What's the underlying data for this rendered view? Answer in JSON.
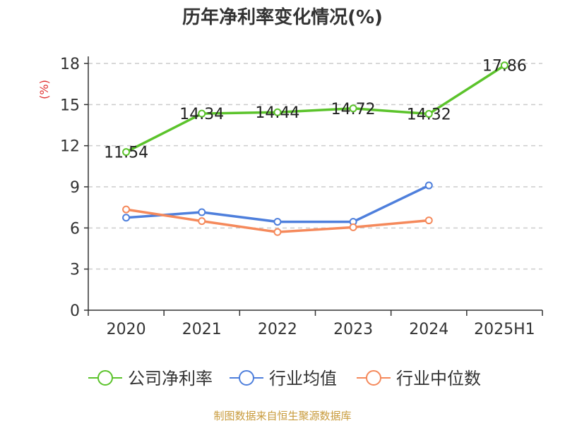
{
  "chart_data": {
    "type": "line",
    "title": "历年净利率变化情况(%)",
    "ylabel": "(%)",
    "categories": [
      "2020",
      "2021",
      "2022",
      "2023",
      "2024",
      "2025H1"
    ],
    "ylim": [
      0,
      18
    ],
    "yticks": [
      "0",
      "3",
      "6",
      "9",
      "12",
      "15",
      "18"
    ],
    "grid": true,
    "legend_position": "bottom",
    "series": [
      {
        "name": "公司净利率",
        "color": "#5bc32b",
        "values": [
          11.54,
          14.34,
          14.44,
          14.72,
          14.32,
          17.86
        ],
        "labels": [
          "11.54",
          "14.34",
          "14.44",
          "14.72",
          "14.32",
          "17.86"
        ]
      },
      {
        "name": "行业均值",
        "color": "#4e7fdc",
        "values": [
          6.75,
          7.15,
          6.45,
          6.45,
          9.1,
          null
        ],
        "labels": []
      },
      {
        "name": "行业中位数",
        "color": "#f5895b",
        "values": [
          7.35,
          6.5,
          5.7,
          6.05,
          6.55,
          null
        ],
        "labels": []
      }
    ]
  },
  "source_text": "制图数据来自恒生聚源数据库",
  "colors": {
    "source": "#c89b3c",
    "ylabel": "#e03030",
    "axis": "#333333",
    "grid": "#cccccc"
  }
}
